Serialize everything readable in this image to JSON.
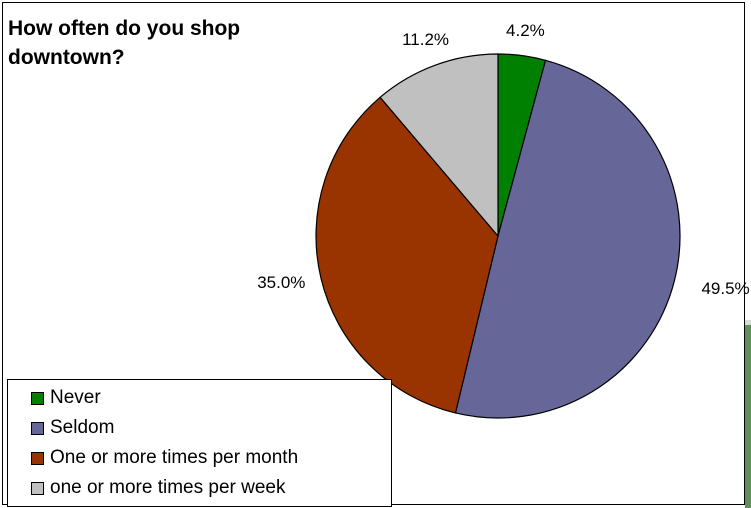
{
  "chart_data": {
    "type": "pie",
    "title": "How often do you shop downtown?",
    "legend_position": "bottom-left",
    "series": [
      {
        "name": "Never",
        "value": 4.2,
        "label": "4.2%",
        "color": "#008000"
      },
      {
        "name": "Seldom",
        "value": 49.5,
        "label": "49.5%",
        "color": "#666699"
      },
      {
        "name": "One or more times per month",
        "value": 35.0,
        "label": "35.0%",
        "color": "#993300"
      },
      {
        "name": "one or more times per week",
        "value": 11.2,
        "label": "11.2%",
        "color": "#c0c0c0"
      }
    ]
  }
}
